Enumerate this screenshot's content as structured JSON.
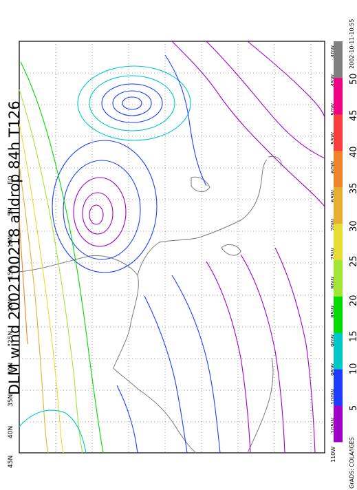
{
  "title": "DLM wind 2002100218 alldrop 84h T126",
  "credit": "GrADS: COLA/IGES",
  "timestamp": "2002-10-11-10:55",
  "lat_labels": [
    "45N",
    "40N",
    "35N",
    "30N",
    "25N",
    "20N",
    "15N",
    "10N",
    "5N",
    "EQ"
  ],
  "lon_labels": [
    "110W",
    "105W",
    "100W",
    "95W",
    "90W",
    "85W",
    "80W",
    "75W",
    "70W",
    "65W",
    "60W",
    "55W",
    "50W",
    "45W",
    "40W"
  ],
  "colorbar": {
    "labels": [
      "5",
      "10",
      "15",
      "20",
      "25",
      "30",
      "35",
      "40",
      "45",
      "50"
    ],
    "colors": [
      "#a000c8",
      "#1e3cff",
      "#00c8c8",
      "#00dc00",
      "#a0e632",
      "#e6dc32",
      "#e6af2d",
      "#f08228",
      "#fa3c3c",
      "#f00082",
      "#808080"
    ]
  },
  "map_colors": {
    "coast": "#787878",
    "grid": "#555555"
  }
}
